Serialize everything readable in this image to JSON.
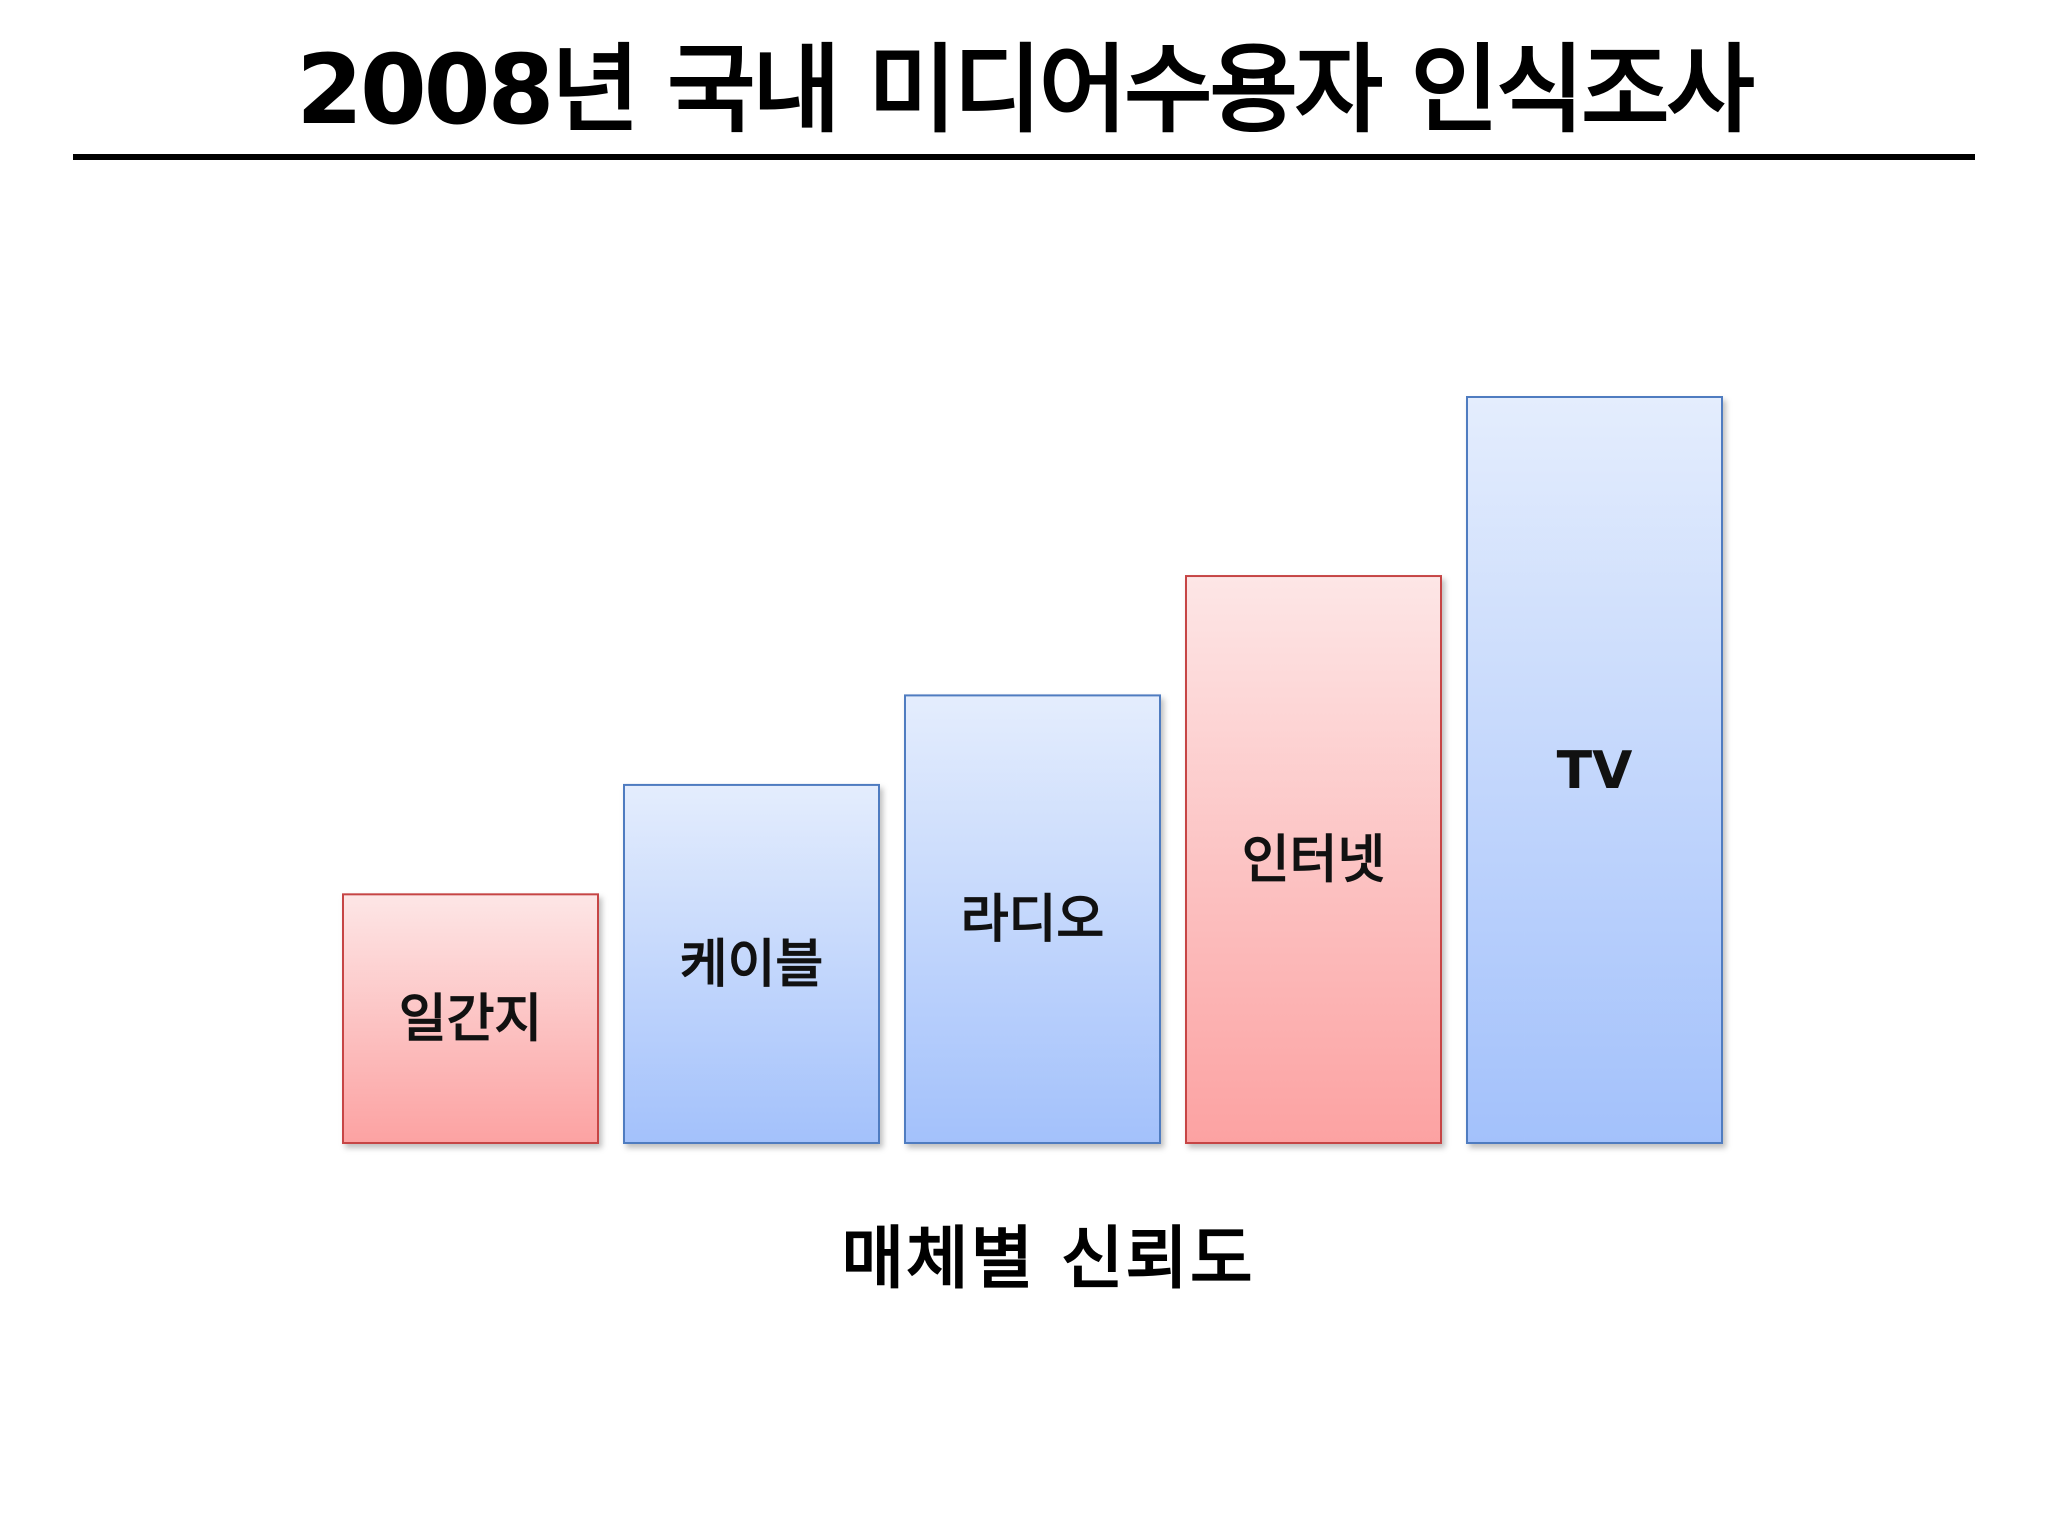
{
  "slide": {
    "title": "2008년 국내 미디어수용자 인식조사"
  },
  "colors": {
    "red_top": "#fde6e6",
    "red_bottom": "#fca2a2",
    "red_border": "#c64545",
    "blue_top": "#e4edfd",
    "blue_bottom": "#a3c1fb",
    "blue_border": "#4f7bc0"
  },
  "chart_data": {
    "type": "bar",
    "title": "",
    "xlabel": "매체별 신뢰도",
    "ylabel": "",
    "categories": [
      "일간지",
      "케이블",
      "라디오",
      "인터넷",
      "TV"
    ],
    "values": [
      2.5,
      3.6,
      4.5,
      5.7,
      7.5
    ],
    "bar_colors": [
      "red",
      "blue",
      "blue",
      "red",
      "blue"
    ],
    "ylim": [
      0,
      7.5
    ],
    "grid": false,
    "legend": "none",
    "values_estimated": true
  }
}
